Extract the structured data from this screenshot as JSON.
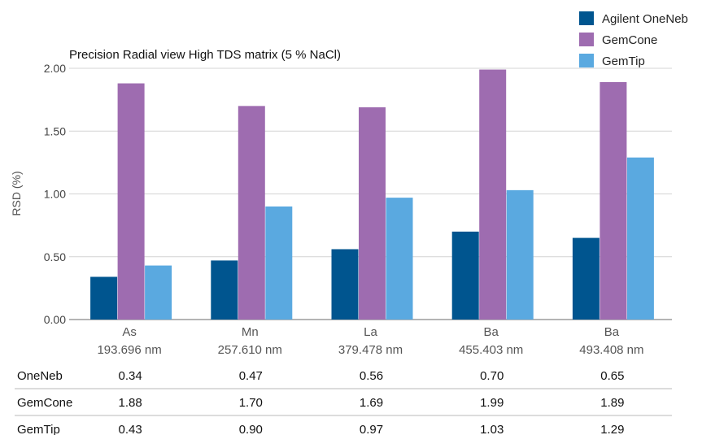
{
  "chart_data": {
    "type": "bar",
    "title": "Precision Radial view High TDS matrix (5 % NaCl)",
    "ylabel": "RSD (%)",
    "ylim": [
      0,
      2.0
    ],
    "yticks": [
      "0.00",
      "0.50",
      "1.00",
      "1.50",
      "2.00"
    ],
    "grid": true,
    "legend_position": "top-right",
    "categories": [
      {
        "element": "As",
        "wavelength": "193.696 nm"
      },
      {
        "element": "Mn",
        "wavelength": "257.610 nm"
      },
      {
        "element": "La",
        "wavelength": "379.478 nm"
      },
      {
        "element": "Ba",
        "wavelength": "455.403 nm"
      },
      {
        "element": "Ba",
        "wavelength": "493.408 nm"
      }
    ],
    "series": [
      {
        "name": "Agilent OneNeb",
        "color": "#00558f",
        "values": [
          0.34,
          0.47,
          0.56,
          0.7,
          0.65
        ]
      },
      {
        "name": "GemCone",
        "color": "#9e6cb0",
        "values": [
          1.88,
          1.7,
          1.69,
          1.99,
          1.89
        ]
      },
      {
        "name": "GemTip",
        "color": "#5aa9e0",
        "values": [
          0.43,
          0.9,
          0.97,
          1.03,
          1.29
        ]
      }
    ],
    "table": {
      "rows": [
        {
          "label": "OneNeb",
          "values": [
            "0.34",
            "0.47",
            "0.56",
            "0.70",
            "0.65"
          ]
        },
        {
          "label": "GemCone",
          "values": [
            "1.88",
            "1.70",
            "1.69",
            "1.99",
            "1.89"
          ]
        },
        {
          "label": "GemTip",
          "values": [
            "0.43",
            "0.90",
            "0.97",
            "1.03",
            "1.29"
          ]
        }
      ]
    }
  }
}
